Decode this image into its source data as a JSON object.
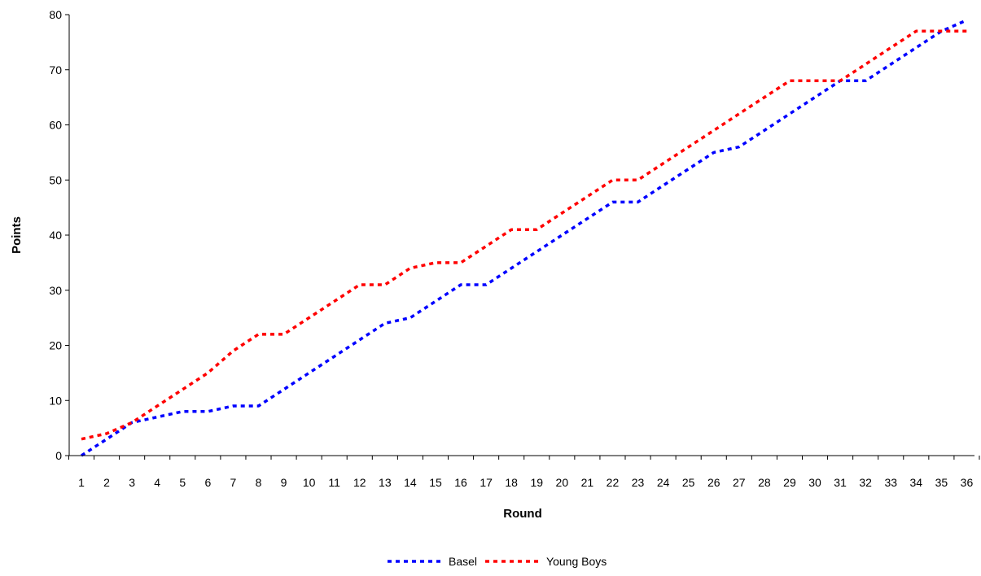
{
  "chart_data": {
    "type": "line",
    "title": "",
    "xlabel": "Round",
    "ylabel": "Points",
    "ylim": [
      0,
      80
    ],
    "yticks": [
      "0",
      "10",
      "20",
      "30",
      "40",
      "50",
      "60",
      "70",
      "80"
    ],
    "categories": [
      "1",
      "2",
      "3",
      "4",
      "5",
      "6",
      "7",
      "8",
      "9",
      "10",
      "11",
      "12",
      "13",
      "14",
      "15",
      "16",
      "17",
      "18",
      "19",
      "20",
      "21",
      "22",
      "23",
      "24",
      "25",
      "26",
      "27",
      "28",
      "29",
      "30",
      "31",
      "32",
      "33",
      "34",
      "35",
      "36"
    ],
    "grid": false,
    "legend_position": "bottom",
    "series": [
      {
        "name": "Basel",
        "color": "#0000ff",
        "line_style": "dashed",
        "values": [
          0,
          3,
          6,
          7,
          8,
          8,
          9,
          9,
          12,
          15,
          18,
          21,
          24,
          25,
          28,
          31,
          31,
          34,
          37,
          40,
          43,
          46,
          46,
          49,
          52,
          55,
          56,
          59,
          62,
          65,
          68,
          68,
          71,
          74,
          77,
          79
        ]
      },
      {
        "name": "Young Boys",
        "color": "#ff0000",
        "line_style": "dashed",
        "values": [
          3,
          4,
          6,
          9,
          12,
          15,
          19,
          22,
          22,
          25,
          28,
          31,
          31,
          34,
          35,
          35,
          38,
          41,
          41,
          44,
          47,
          50,
          50,
          53,
          56,
          59,
          62,
          65,
          68,
          68,
          68,
          71,
          74,
          77,
          77,
          77
        ]
      }
    ]
  }
}
